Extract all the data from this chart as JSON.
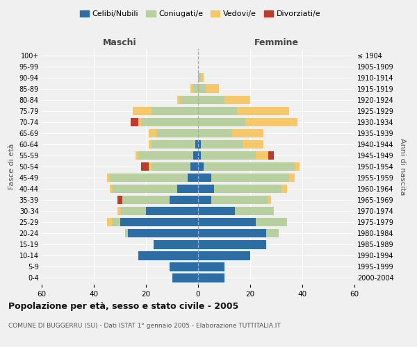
{
  "age_groups": [
    "0-4",
    "5-9",
    "10-14",
    "15-19",
    "20-24",
    "25-29",
    "30-34",
    "35-39",
    "40-44",
    "45-49",
    "50-54",
    "55-59",
    "60-64",
    "65-69",
    "70-74",
    "75-79",
    "80-84",
    "85-89",
    "90-94",
    "95-99",
    "100+"
  ],
  "birth_years": [
    "2000-2004",
    "1995-1999",
    "1990-1994",
    "1985-1989",
    "1980-1984",
    "1975-1979",
    "1970-1974",
    "1965-1969",
    "1960-1964",
    "1955-1959",
    "1950-1954",
    "1945-1949",
    "1940-1944",
    "1935-1939",
    "1930-1934",
    "1925-1929",
    "1920-1924",
    "1915-1919",
    "1910-1914",
    "1905-1909",
    "≤ 1904"
  ],
  "male": {
    "celibi": [
      10,
      11,
      23,
      17,
      27,
      30,
      20,
      11,
      8,
      4,
      3,
      2,
      1,
      0,
      0,
      0,
      0,
      0,
      0,
      0,
      0
    ],
    "coniugati": [
      0,
      0,
      0,
      0,
      1,
      3,
      10,
      18,
      25,
      30,
      15,
      21,
      17,
      16,
      22,
      18,
      7,
      2,
      0,
      0,
      0
    ],
    "vedovi": [
      0,
      0,
      0,
      0,
      0,
      2,
      1,
      0,
      1,
      1,
      1,
      1,
      1,
      3,
      1,
      7,
      1,
      1,
      0,
      0,
      0
    ],
    "divorziati": [
      0,
      0,
      0,
      0,
      0,
      0,
      0,
      2,
      0,
      0,
      3,
      0,
      0,
      0,
      3,
      0,
      0,
      0,
      0,
      0,
      0
    ]
  },
  "female": {
    "nubili": [
      10,
      10,
      20,
      26,
      26,
      22,
      14,
      5,
      6,
      5,
      2,
      1,
      1,
      0,
      0,
      0,
      0,
      0,
      0,
      0,
      0
    ],
    "coniugate": [
      0,
      0,
      0,
      0,
      5,
      12,
      15,
      22,
      26,
      30,
      35,
      21,
      16,
      13,
      18,
      15,
      10,
      3,
      1,
      0,
      0
    ],
    "vedove": [
      0,
      0,
      0,
      0,
      0,
      0,
      0,
      1,
      2,
      2,
      2,
      5,
      8,
      12,
      20,
      20,
      10,
      5,
      1,
      0,
      0
    ],
    "divorziate": [
      0,
      0,
      0,
      0,
      0,
      0,
      0,
      0,
      0,
      0,
      0,
      2,
      0,
      0,
      0,
      0,
      0,
      0,
      0,
      0,
      0
    ]
  },
  "colors": {
    "celibi": "#2e6da4",
    "coniugati": "#b8cfa0",
    "vedovi": "#f5c96b",
    "divorziati": "#c0392b"
  },
  "xlim": 60,
  "title": "Popolazione per età, sesso e stato civile - 2005",
  "subtitle": "COMUNE DI BUGGERRU (SU) - Dati ISTAT 1° gennaio 2005 - Elaborazione TUTTITALIA.IT",
  "maschi_label": "Maschi",
  "femmine_label": "Femmine",
  "fasce_label": "Fasce di età",
  "anni_label": "Anni di nascita",
  "legend_labels": [
    "Celibi/Nubili",
    "Coniugati/e",
    "Vedovi/e",
    "Divorziati/e"
  ],
  "bg_color": "#f0f0f0"
}
